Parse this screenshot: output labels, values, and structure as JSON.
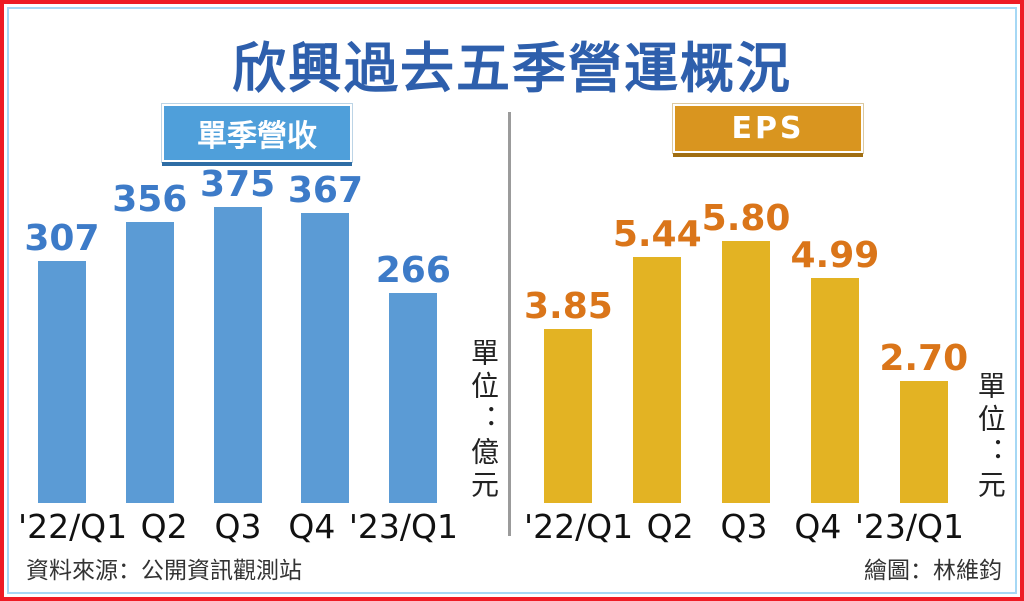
{
  "title": "欣興過去五季營運概況",
  "footer": {
    "source": "資料來源：公開資訊觀測站",
    "credit": "繪圖：林維鈞"
  },
  "colors": {
    "frame_outer": "#ee1c25",
    "frame_inner": "#a6d8f5",
    "title_blue": "#2e5fac",
    "divider_gray": "#9b9b9b",
    "revenue_bar": "#5b9bd5",
    "revenue_value": "#3d7bc8",
    "revenue_badge_bg": "#4f9fda",
    "eps_bar": "#e3b323",
    "eps_value": "#da7519",
    "eps_badge_bg": "#d9951f"
  },
  "chart_data": [
    {
      "type": "bar",
      "title": "單季營收",
      "unit_label": "單位：億元",
      "categories": [
        "'22/Q1",
        "Q2",
        "Q3",
        "Q4",
        "'23/Q1"
      ],
      "values": [
        307,
        356,
        375,
        367,
        266
      ],
      "value_labels": [
        "307",
        "356",
        "375",
        "367",
        "266"
      ],
      "bar_color": "#5b9bd5",
      "label_color": "#3d7bc8",
      "xlabel": "",
      "ylabel": "億元",
      "ylim": [
        0,
        375
      ],
      "grid": false,
      "legend": "none"
    },
    {
      "type": "bar",
      "title": "EPS",
      "unit_label": "單位：元",
      "categories": [
        "'22/Q1",
        "Q2",
        "Q3",
        "Q4",
        "'23/Q1"
      ],
      "values": [
        3.85,
        5.44,
        5.8,
        4.99,
        2.7
      ],
      "value_labels": [
        "3.85",
        "5.44",
        "5.80",
        "4.99",
        "2.70"
      ],
      "bar_color": "#e3b323",
      "label_color": "#da7519",
      "xlabel": "",
      "ylabel": "元",
      "ylim": [
        0,
        5.8
      ],
      "grid": false,
      "legend": "none"
    }
  ]
}
